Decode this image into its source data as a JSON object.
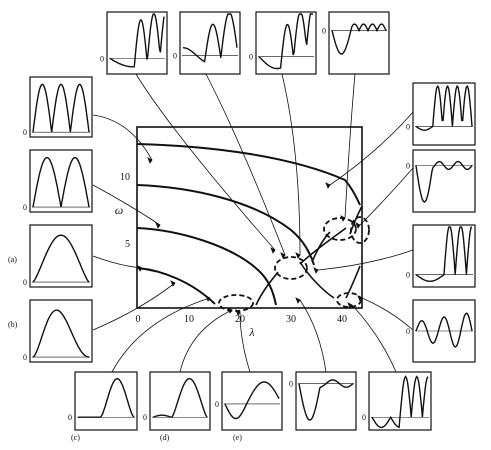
{
  "chart_data": {
    "type": "line",
    "xlabel": "λ",
    "ylabel": "ω",
    "xlim": [
      0,
      44
    ],
    "ylim": [
      0,
      14
    ],
    "x_ticks": [
      "0",
      "10",
      "20",
      "30",
      "40"
    ],
    "y_ticks": [
      "5",
      "10"
    ],
    "series": [
      {
        "x": [
          0,
          4,
          8,
          12,
          14,
          16
        ],
        "values": [
          3.2,
          3.0,
          2.3,
          1.2,
          0.5,
          0.0
        ]
      },
      {
        "x": [
          0,
          6,
          12,
          17,
          22,
          25.5,
          28
        ],
        "values": [
          6.4,
          6.1,
          5.4,
          4.4,
          3.1,
          1.8,
          0.0
        ]
      },
      {
        "x": [
          0,
          10,
          20,
          26,
          29.5,
          32,
          34
        ],
        "values": [
          9.5,
          9.2,
          8.3,
          7.2,
          6.0,
          4.8,
          3.2
        ]
      },
      {
        "x": [
          0,
          12,
          24,
          32,
          36.5,
          40,
          44
        ],
        "values": [
          13.0,
          12.6,
          11.4,
          10.0,
          8.4,
          6.9,
          5.0
        ]
      }
    ]
  },
  "zero_label": "0",
  "panel_labels": {
    "a": "(a)",
    "b": "(b)",
    "c": "(c)",
    "d": "(d)",
    "e": "(e)"
  }
}
